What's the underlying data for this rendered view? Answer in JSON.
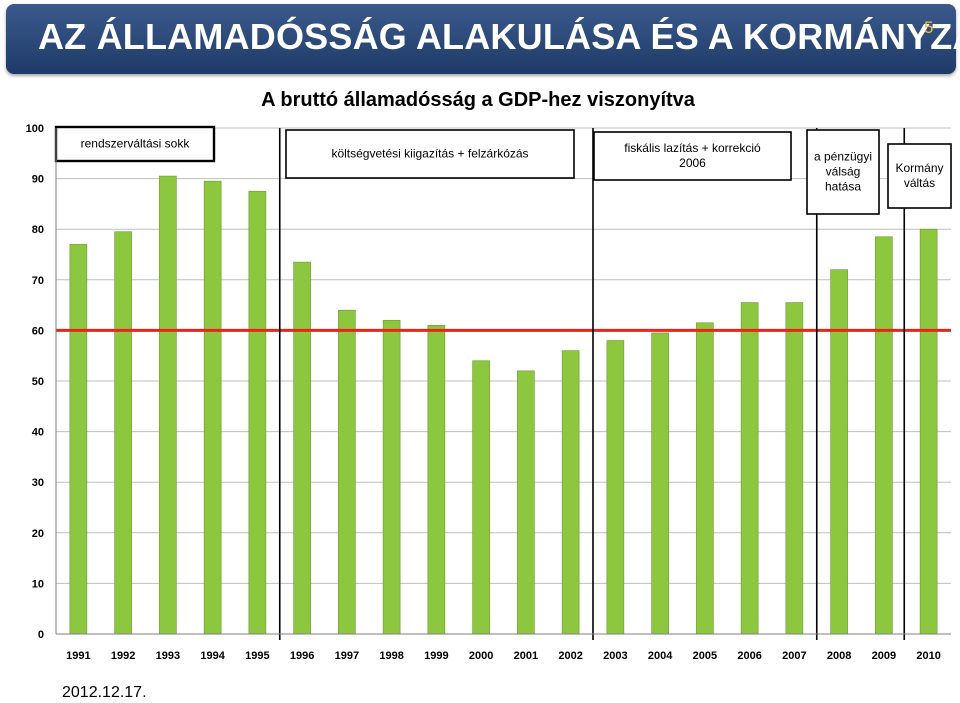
{
  "header": {
    "title": "AZ ÁLLAMADÓSSÁG ALAKULÁSA ÉS A KORMÁNYZÁS",
    "slide_number": "5"
  },
  "footer": {
    "date": "2012.12.17."
  },
  "colors": {
    "header_bg": "#2c4a7c",
    "bar": "#8dc63f",
    "reference_line": "#e8241c"
  },
  "chart_data": {
    "type": "bar",
    "title": "A bruttó államadósság a GDP-hez viszonyítva",
    "categories": [
      "1991",
      "1992",
      "1993",
      "1994",
      "1995",
      "1996",
      "1997",
      "1998",
      "1999",
      "2000",
      "2001",
      "2002",
      "2003",
      "2004",
      "2005",
      "2006",
      "2007",
      "2008",
      "2009",
      "2010"
    ],
    "values": [
      77,
      79.5,
      90.5,
      89.5,
      87.5,
      73.5,
      64,
      62,
      61,
      54,
      52,
      56,
      58,
      59.5,
      61.5,
      65.5,
      65.5,
      72,
      78.5,
      80
    ],
    "ylim": [
      0,
      100
    ],
    "yticks": [
      0,
      10,
      20,
      30,
      40,
      50,
      60,
      70,
      80,
      90,
      100
    ],
    "reference_line": 60,
    "grid": true,
    "period_dividers": [
      "1995/1996",
      "2002/2003",
      "2007/2008",
      "2009"
    ],
    "annotations": [
      {
        "lines": [
          "rendszerváltási sokk"
        ],
        "bold_border": true
      },
      {
        "lines": [
          "költségvetési kiigazítás + felzárkózás"
        ]
      },
      {
        "lines": [
          "fiskális lazítás + korrekció",
          "2006"
        ]
      },
      {
        "lines": [
          "a pénzügyi",
          "válság",
          "hatása"
        ]
      },
      {
        "lines": [
          "Kormány",
          "váltás"
        ]
      }
    ]
  }
}
